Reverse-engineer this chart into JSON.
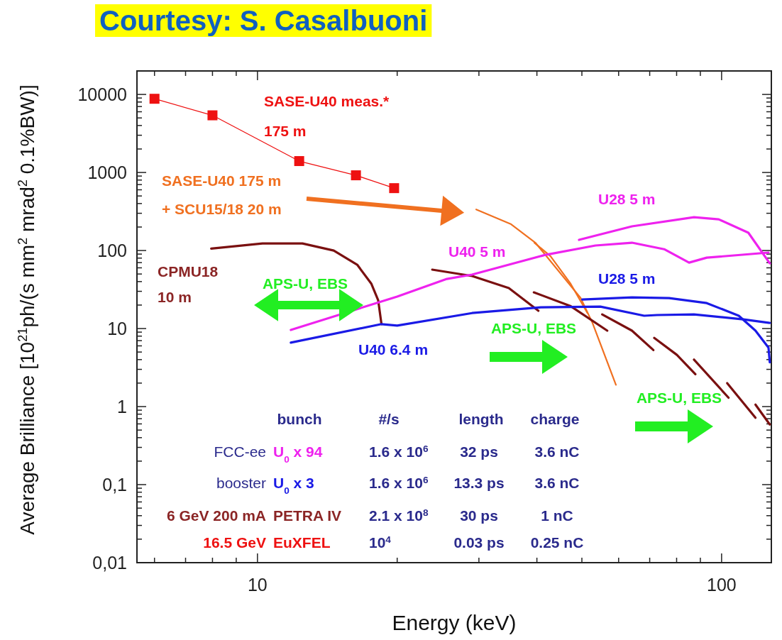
{
  "chart_data": {
    "type": "line",
    "xlabel": "Energy (keV)",
    "ylabel": "Average Brilliance [10$^{21}$ph/(s mm$^{2}$ mrad$^{2}$ 0.1%BW)]",
    "log": "xy",
    "grid": false,
    "marker": "none",
    "xlim": [
      5.5,
      128
    ],
    "ylim": [
      0.01,
      20000
    ],
    "xticks": [
      {
        "value": 6,
        "label": null
      },
      {
        "value": 7,
        "label": null
      },
      {
        "value": 8,
        "label": null
      },
      {
        "value": 9,
        "label": null
      },
      10,
      {
        "value": 20,
        "label": null
      },
      {
        "value": 30,
        "label": null
      },
      {
        "value": 40,
        "label": null
      },
      {
        "value": 50,
        "label": null
      },
      {
        "value": 60,
        "label": null
      },
      {
        "value": 70,
        "label": null
      },
      {
        "value": 80,
        "label": null
      },
      {
        "value": 90,
        "label": null
      },
      100
    ],
    "yticks": [
      {
        "value": 0.01,
        "label": "0,01"
      },
      {
        "value": 0.02,
        "label": null
      },
      {
        "value": 0.03,
        "label": null
      },
      {
        "value": 0.04,
        "label": null
      },
      {
        "value": 0.05,
        "label": null
      },
      {
        "value": 0.06,
        "label": null
      },
      {
        "value": 0.07,
        "label": null
      },
      {
        "value": 0.08,
        "label": null
      },
      {
        "value": 0.09,
        "label": null
      },
      {
        "value": 0.1,
        "label": "0,1"
      },
      {
        "value": 0.2,
        "label": null
      },
      {
        "value": 0.3,
        "label": null
      },
      {
        "value": 0.4,
        "label": null
      },
      {
        "value": 0.5,
        "label": null
      },
      {
        "value": 0.6,
        "label": null
      },
      {
        "value": 0.7,
        "label": null
      },
      {
        "value": 0.8,
        "label": null
      },
      {
        "value": 0.9,
        "label": null
      },
      1,
      {
        "value": 2,
        "label": null
      },
      {
        "value": 3,
        "label": null
      },
      {
        "value": 4,
        "label": null
      },
      {
        "value": 5,
        "label": null
      },
      {
        "value": 6,
        "label": null
      },
      {
        "value": 7,
        "label": null
      },
      {
        "value": 8,
        "label": null
      },
      {
        "value": 9,
        "label": null
      },
      10,
      {
        "value": 20,
        "label": null
      },
      {
        "value": 30,
        "label": null
      },
      {
        "value": 40,
        "label": null
      },
      {
        "value": 50,
        "label": null
      },
      {
        "value": 60,
        "label": null
      },
      {
        "value": 70,
        "label": null
      },
      {
        "value": 80,
        "label": null
      },
      {
        "value": 90,
        "label": null
      },
      100,
      {
        "value": 200,
        "label": null
      },
      {
        "value": 300,
        "label": null
      },
      {
        "value": 400,
        "label": null
      },
      {
        "value": 500,
        "label": null
      },
      {
        "value": 600,
        "label": null
      },
      {
        "value": 700,
        "label": null
      },
      {
        "value": 800,
        "label": null
      },
      {
        "value": 900,
        "label": null
      },
      1000,
      {
        "value": 2000,
        "label": null
      },
      {
        "value": 3000,
        "label": null
      },
      {
        "value": 4000,
        "label": null
      },
      {
        "value": 5000,
        "label": null
      },
      {
        "value": 6000,
        "label": null
      },
      {
        "value": 7000,
        "label": null
      },
      {
        "value": 8000,
        "label": null
      },
      {
        "value": 9000,
        "label": null
      },
      10000,
      {
        "value": 20000,
        "label": null
      }
    ],
    "series": [
      {
        "name": "SASE-U40 meas.*\n175 m",
        "color": "#ee1111",
        "marker": "square",
        "x": [
          6.0,
          8.0,
          12.3,
          16.3,
          19.7
        ],
        "values": [
          8800,
          5400,
          1400,
          920,
          630
        ]
      },
      {
        "name": "SASE-U40 175 m\n+ SCU15/18  20 m",
        "color": "#f07020",
        "x": [
          29.6,
          35.2,
          39.7,
          49.7,
          52.7,
          59.2
        ],
        "values": [
          336,
          217,
          126,
          24.6,
          11.8,
          1.9
        ]
      },
      {
        "color": "#f07020",
        "x": [
          39.5,
          42.8,
          47.2,
          51.4
        ],
        "values": [
          126,
          84.6,
          38.2,
          15.8
        ]
      },
      {
        "name": "CPMU18\n10 m",
        "color": "#7a1010",
        "x": [
          7.95,
          10.25,
          12.5,
          14.6,
          16.4,
          17.6,
          18.2,
          18.5
        ],
        "values": [
          106,
          123,
          123,
          100,
          65.8,
          37.4,
          23.1,
          11.4
        ]
      },
      {
        "color": "#7a1010",
        "x": [
          23.8,
          29.0,
          34.8,
          40.3
        ],
        "values": [
          56.9,
          47.1,
          33.0,
          16.9
        ]
      },
      {
        "color": "#7a1010",
        "x": [
          39.4,
          47.2,
          56.7
        ],
        "values": [
          29.1,
          19.5,
          9.4
        ]
      },
      {
        "color": "#7a1010",
        "x": [
          55.3,
          64.1,
          71.3
        ],
        "values": [
          15.2,
          9.4,
          5.3
        ]
      },
      {
        "color": "#7a1010",
        "x": [
          71.6,
          80.1,
          87.8
        ],
        "values": [
          7.6,
          4.6,
          2.6
        ]
      },
      {
        "color": "#7a1010",
        "x": [
          87.2,
          103.5
        ],
        "values": [
          4.0,
          1.3
        ]
      },
      {
        "color": "#7a1010",
        "x": [
          102.8,
          118.3
        ],
        "values": [
          2.0,
          0.72
        ]
      },
      {
        "color": "#7a1010",
        "x": [
          118.3,
          127
        ],
        "values": [
          1.06,
          0.59
        ]
      },
      {
        "name": "U40 6.4 m",
        "color": "#1a1ae6",
        "x": [
          11.8,
          18.5,
          20.0,
          29.0,
          40.8,
          54.8,
          68.1,
          72.6,
          87.2,
          111.4,
          127
        ],
        "values": [
          6.6,
          11.4,
          10.9,
          15.8,
          18.7,
          19.1,
          14.6,
          14.9,
          15.2,
          13.1,
          11.8
        ]
      },
      {
        "name": "U28 5 m",
        "color": "#1a1ae6",
        "x": [
          50.1,
          64.1,
          77.1,
          92.9,
          108.9,
          118.3,
          126.2,
          127
        ],
        "values": [
          23.6,
          25.1,
          24.6,
          21.2,
          14.6,
          9.4,
          5.7,
          3.7
        ]
      },
      {
        "name": "U40 5 m",
        "color": "#ee22ee",
        "x": [
          11.8,
          20.0,
          25.6,
          29.0,
          41.8,
          53.5,
          64.1,
          75.2,
          85.1,
          92.9,
          126.2
        ],
        "values": [
          9.6,
          25.7,
          43.3,
          49.1,
          88.2,
          116,
          126,
          104,
          70,
          81,
          94
        ]
      },
      {
        "name": "U28 5 m",
        "color": "#ee22ee",
        "x": [
          49.3,
          64.1,
          87.2,
          98.6,
          114.2,
          127
        ],
        "values": [
          137,
          204,
          267,
          251,
          169,
          68.6
        ]
      }
    ],
    "annotations": [
      "Courtesy: S. Casalbuoni",
      "APS-U, EBS",
      "APS-U, EBS",
      "APS-U, EBS",
      "bunch",
      "#/s",
      "length",
      "charge",
      "FCC-ee",
      "U$_{0}$ x 94",
      "1.6 x 10$^{6}$",
      "32 ps",
      "3.6 nC",
      "booster",
      "U$_{0}$ x 3",
      "1.6 x 10$^{6}$",
      "13.3 ps",
      "3.6 nC",
      "6 GeV 200 mA",
      "PETRA IV",
      "2.1 x 10$^{8}$",
      "30 ps",
      "1 nC",
      "16.5 GeV",
      "EuXFEL",
      "10$^{4}$",
      "0.03 ps",
      "0.25 nC"
    ]
  }
}
